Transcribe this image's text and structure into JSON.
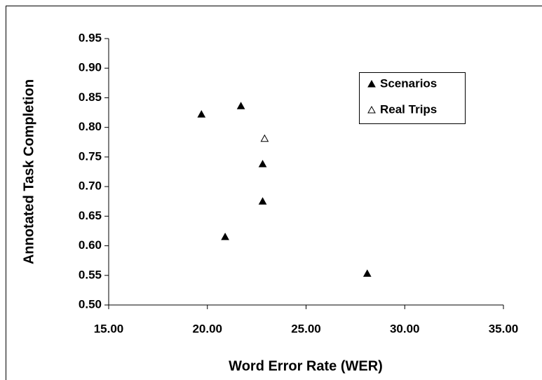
{
  "chart_data": {
    "type": "scatter",
    "x_label": "Word Error Rate (WER)",
    "y_label": "Annotated Task Completion",
    "xlim": [
      15,
      35
    ],
    "ylim": [
      0.5,
      0.95
    ],
    "xticks": [
      {
        "value": 15,
        "label": "15.00"
      },
      {
        "value": 20,
        "label": "20.00"
      },
      {
        "value": 25,
        "label": "25.00"
      },
      {
        "value": 30,
        "label": "30.00"
      },
      {
        "value": 35,
        "label": "35.00"
      }
    ],
    "yticks": [
      {
        "value": 0.5,
        "label": "0.50"
      },
      0.55,
      {
        "value": 0.6,
        "label": "0.60"
      },
      0.65,
      {
        "value": 0.7,
        "label": "0.70"
      },
      0.75,
      {
        "value": 0.8,
        "label": "0.80"
      },
      0.85,
      {
        "value": 0.9,
        "label": "0.90"
      },
      0.95
    ],
    "series": [
      {
        "name": "Scenarios",
        "color": "#000000",
        "marker": "filled-triangle",
        "x": [
          19.7,
          21.7,
          22.8,
          22.8,
          20.9,
          28.1
        ],
        "values": [
          0.822,
          0.836,
          0.738,
          0.675,
          0.615,
          0.553
        ]
      },
      {
        "name": "Real Trips",
        "color": "#000000",
        "marker": "open-triangle",
        "x": [
          22.9
        ],
        "values": [
          0.781
        ]
      }
    ],
    "legend": "upper-right"
  }
}
